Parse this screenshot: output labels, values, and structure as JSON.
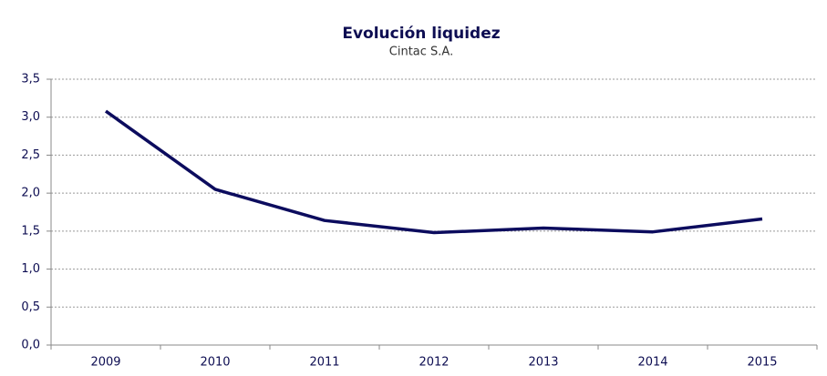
{
  "chart_data": {
    "type": "line",
    "title": "Evolución liquidez",
    "subtitle": "Cintac S.A.",
    "categories": [
      "2009",
      "2010",
      "2011",
      "2012",
      "2013",
      "2014",
      "2015"
    ],
    "values": [
      3.08,
      2.05,
      1.64,
      1.48,
      1.54,
      1.49,
      1.66
    ],
    "color": "#0c0c5e",
    "ylim": [
      0,
      3.5
    ],
    "yticks": [
      {
        "value": 0,
        "label": "0,0"
      },
      {
        "value": 0.5,
        "label": "0,5"
      },
      {
        "value": 1,
        "label": "1,0"
      },
      {
        "value": 1.5,
        "label": "1,5"
      },
      {
        "value": 2,
        "label": "2,0"
      },
      {
        "value": 2.5,
        "label": "2,5"
      },
      {
        "value": 3,
        "label": "3,0"
      },
      {
        "value": 3.5,
        "label": "3,5"
      }
    ],
    "grid": true
  }
}
